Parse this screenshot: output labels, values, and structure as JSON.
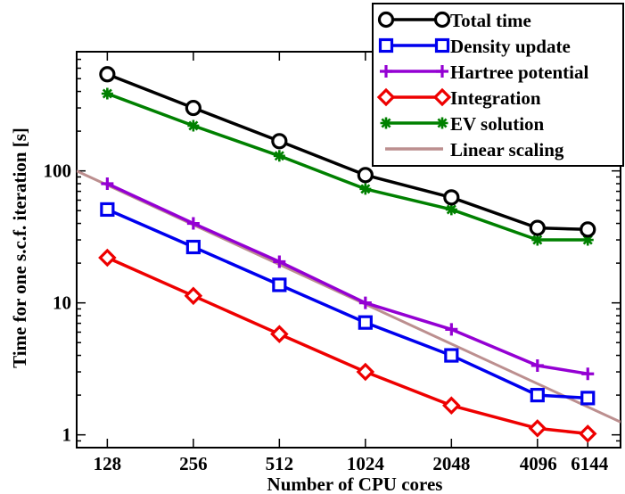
{
  "chart_data": {
    "type": "line",
    "xlabel": "Number of CPU cores",
    "ylabel": "Time for one s.c.f. iteration [s]",
    "x_scale": "log2",
    "y_scale": "log10",
    "xlim": [
      100,
      8000
    ],
    "ylim": [
      0.8,
      800
    ],
    "x_ticks": [
      128,
      256,
      512,
      1024,
      2048,
      4096,
      6144
    ],
    "x_tick_labels": [
      "128",
      "256",
      "512",
      "1024",
      "2048",
      "4096",
      "6144"
    ],
    "y_ticks": [
      1,
      10,
      100
    ],
    "y_tick_labels": [
      "1",
      "10",
      "100"
    ],
    "legend_position": "top-right",
    "grid": false,
    "series": [
      {
        "name": "Total time",
        "color": "#000000",
        "marker": "circle",
        "x": [
          128,
          256,
          512,
          1024,
          2048,
          4096,
          6144
        ],
        "values": [
          540,
          300,
          168,
          93,
          63,
          37,
          36
        ]
      },
      {
        "name": "Density update",
        "color": "#0000ee",
        "marker": "square",
        "x": [
          128,
          256,
          512,
          1024,
          2048,
          4096,
          6144
        ],
        "values": [
          51,
          26.5,
          13.7,
          7.1,
          4.0,
          2.0,
          1.9
        ]
      },
      {
        "name": "Hartree potential",
        "color": "#9400d3",
        "marker": "plus",
        "x": [
          128,
          256,
          512,
          1024,
          2048,
          4096,
          6144
        ],
        "values": [
          80,
          40,
          20.5,
          10,
          6.3,
          3.35,
          2.9
        ]
      },
      {
        "name": "Integration",
        "color": "#ee0000",
        "marker": "diamond",
        "x": [
          128,
          256,
          512,
          1024,
          2048,
          4096,
          6144
        ],
        "values": [
          22,
          11.3,
          5.8,
          3.0,
          1.67,
          1.12,
          1.02
        ]
      },
      {
        "name": "EV solution",
        "color": "#008000",
        "marker": "star",
        "x": [
          128,
          256,
          512,
          1024,
          2048,
          4096,
          6144
        ],
        "values": [
          385,
          220,
          130,
          73,
          51,
          30,
          30
        ]
      },
      {
        "name": "Linear scaling",
        "color": "#bc8f8f",
        "marker": "none",
        "x": [
          100,
          8000
        ],
        "values": [
          100,
          1.25
        ]
      }
    ]
  }
}
